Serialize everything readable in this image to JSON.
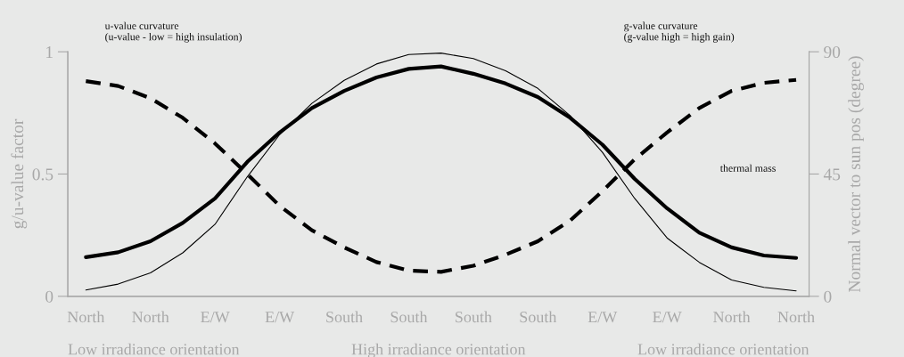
{
  "chart_data": {
    "type": "line",
    "categories": [
      "North",
      null,
      "North",
      null,
      "E/W",
      null,
      "E/W",
      null,
      "South",
      null,
      "South",
      null,
      "South",
      null,
      "South",
      null,
      "E/W",
      null,
      "E/W",
      null,
      "North",
      null,
      "North"
    ],
    "ylim": [
      0,
      1
    ],
    "yticks": [
      0,
      0.5,
      1
    ],
    "y2lim": [
      0,
      90
    ],
    "y2ticks": [
      0,
      45,
      90
    ],
    "ylabel": "g/u-value factor",
    "y2label": "Normal vector to sun pos (degree)",
    "series": [
      {
        "color": "#000000",
        "line_style": "solid",
        "values": [
          0.16,
          0.18,
          0.225,
          0.3,
          0.4,
          0.55,
          0.67,
          0.77,
          0.84,
          0.895,
          0.93,
          0.94,
          0.91,
          0.87,
          0.815,
          0.73,
          0.62,
          0.48,
          0.36,
          0.26,
          0.2,
          0.167,
          0.157
        ]
      },
      {
        "color": "#000000",
        "line_style": "solid",
        "axis": "y2",
        "values": [
          2.3,
          4.5,
          8.6,
          16,
          26.5,
          44,
          59.5,
          71,
          79.5,
          85.5,
          89,
          89.5,
          87.5,
          83,
          76.5,
          66.5,
          53,
          36,
          21.5,
          12.5,
          6,
          3.3,
          2
        ]
      },
      {
        "color": "#000000",
        "line_style": "dashed",
        "values": [
          0.88,
          0.86,
          0.81,
          0.73,
          0.625,
          0.5,
          0.37,
          0.27,
          0.2,
          0.14,
          0.105,
          0.1,
          0.125,
          0.17,
          0.225,
          0.31,
          0.43,
          0.56,
          0.67,
          0.77,
          0.84,
          0.873,
          0.885
        ]
      }
    ],
    "annotations": [
      "u-value curvature\n(u-value - low = high insulation)",
      "g-value curvature\n(g-value high = high gain)",
      "thermal mass",
      "Low irradiance orientation",
      "High irradiance orientation",
      "Low irradiance orientation"
    ],
    "grid": false,
    "marker": "none"
  }
}
